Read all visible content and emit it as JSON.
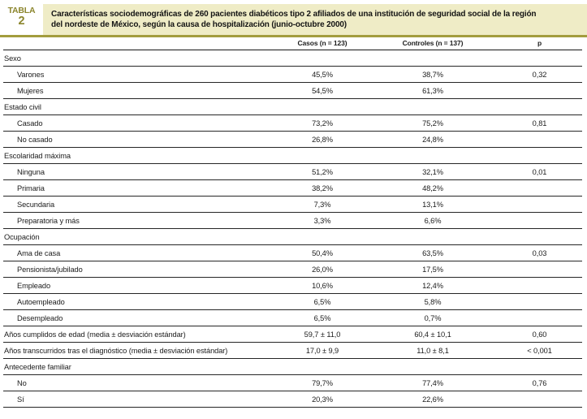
{
  "header": {
    "label_word": "TABLA",
    "label_number": "2",
    "title_line1": "Características sociodemográficas de 260 pacientes diabéticos tipo 2 afiliados de una institución de seguridad social de la región",
    "title_line2": "del nordeste de México, según la causa de hospitalización (junio-octubre 2000)"
  },
  "colors": {
    "olive_text": "#8C862E",
    "banner_bg": "#EFECC6",
    "rule_olive": "#A39D3E"
  },
  "table": {
    "columns": [
      "",
      "Casos (n = 123)",
      "Controles (n = 137)",
      "p"
    ],
    "rows": [
      {
        "type": "category",
        "label": "Sexo",
        "casos": "",
        "controles": "",
        "p": ""
      },
      {
        "type": "item",
        "label": "Varones",
        "casos": "45,5%",
        "controles": "38,7%",
        "p": "0,32"
      },
      {
        "type": "item",
        "label": "Mujeres",
        "casos": "54,5%",
        "controles": "61,3%",
        "p": ""
      },
      {
        "type": "category",
        "label": "Estado civil",
        "casos": "",
        "controles": "",
        "p": ""
      },
      {
        "type": "item",
        "label": "Casado",
        "casos": "73,2%",
        "controles": "75,2%",
        "p": "0,81"
      },
      {
        "type": "item",
        "label": "No casado",
        "casos": "26,8%",
        "controles": "24,8%",
        "p": ""
      },
      {
        "type": "category",
        "label": "Escolaridad máxima",
        "casos": "",
        "controles": "",
        "p": ""
      },
      {
        "type": "item",
        "label": "Ninguna",
        "casos": "51,2%",
        "controles": "32,1%",
        "p": "0,01"
      },
      {
        "type": "item",
        "label": "Primaria",
        "casos": "38,2%",
        "controles": "48,2%",
        "p": ""
      },
      {
        "type": "item",
        "label": "Secundaria",
        "casos": "7,3%",
        "controles": "13,1%",
        "p": ""
      },
      {
        "type": "item",
        "label": "Preparatoria y más",
        "casos": "3,3%",
        "controles": "6,6%",
        "p": ""
      },
      {
        "type": "category",
        "label": "Ocupación",
        "casos": "",
        "controles": "",
        "p": ""
      },
      {
        "type": "item",
        "label": "Ama de casa",
        "casos": "50,4%",
        "controles": "63,5%",
        "p": "0,03"
      },
      {
        "type": "item",
        "label": "Pensionista/jubilado",
        "casos": "26,0%",
        "controles": "17,5%",
        "p": ""
      },
      {
        "type": "item",
        "label": "Empleado",
        "casos": "10,6%",
        "controles": "12,4%",
        "p": ""
      },
      {
        "type": "item",
        "label": "Autoempleado",
        "casos": "6,5%",
        "controles": "5,8%",
        "p": ""
      },
      {
        "type": "item",
        "label": "Desempleado",
        "casos": "6,5%",
        "controles": "0,7%",
        "p": ""
      },
      {
        "type": "full",
        "label": "Años cumplidos de edad (media ± desviación estándar)",
        "casos": "59,7 ± 11,0",
        "controles": "60,4 ± 10,1",
        "p": "0,60"
      },
      {
        "type": "full",
        "label": "Años transcurridos tras el diagnóstico (media ± desviación estándar)",
        "casos": "17,0 ± 9,9",
        "controles": "11,0 ± 8,1",
        "p": "< 0,001"
      },
      {
        "type": "category",
        "label": "Antecedente familiar",
        "casos": "",
        "controles": "",
        "p": ""
      },
      {
        "type": "item",
        "label": "No",
        "casos": "79,7%",
        "controles": "77,4%",
        "p": "0,76"
      },
      {
        "type": "item",
        "label": "Sí",
        "casos": "20,3%",
        "controles": "22,6%",
        "p": ""
      }
    ]
  }
}
